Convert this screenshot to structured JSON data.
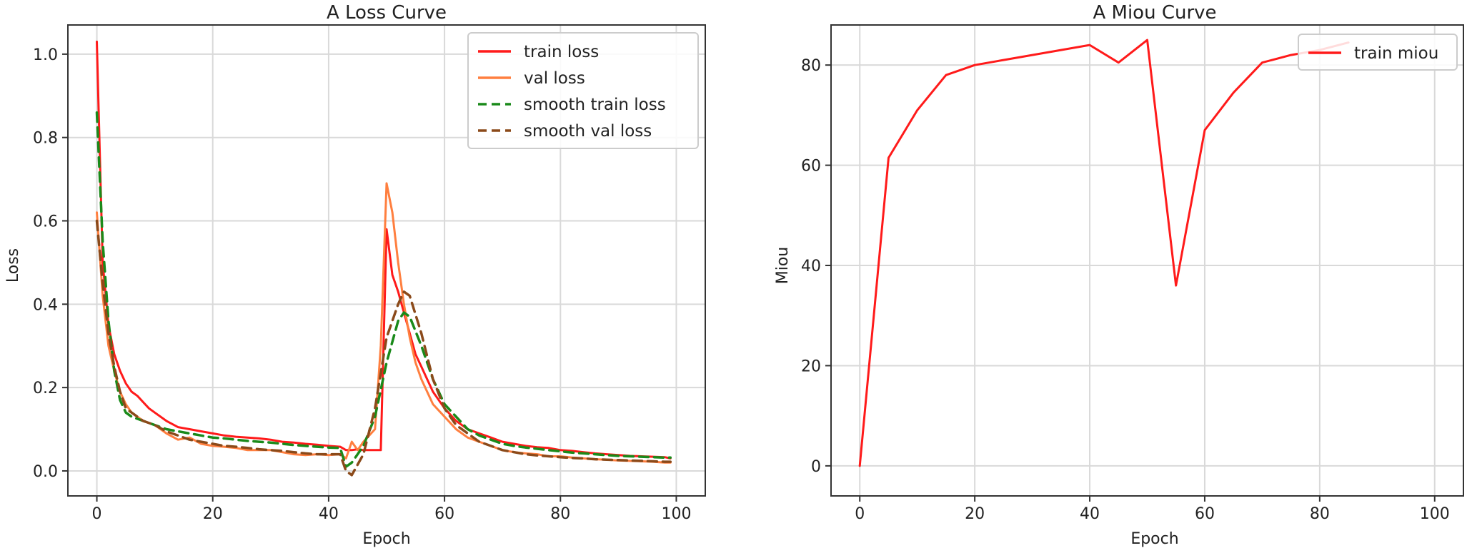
{
  "chart_data": [
    {
      "type": "line",
      "title": "A Loss Curve",
      "xlabel": "Epoch",
      "ylabel": "Loss",
      "xlim": [
        -5,
        105
      ],
      "ylim": [
        -0.06,
        1.07
      ],
      "xticks": [
        0,
        20,
        40,
        60,
        80,
        100
      ],
      "yticks": [
        0.0,
        0.2,
        0.4,
        0.6,
        0.8,
        1.0
      ],
      "grid": true,
      "legend_position": "top-right",
      "series": [
        {
          "name": "train loss",
          "color": "#ff1a1a",
          "dash": "solid",
          "x": [
            0,
            1,
            2,
            3,
            4,
            5,
            6,
            7,
            8,
            9,
            10,
            12,
            14,
            16,
            18,
            20,
            22,
            24,
            26,
            28,
            30,
            32,
            34,
            36,
            38,
            40,
            42,
            43,
            44,
            45,
            46,
            48,
            49,
            50,
            51,
            52,
            53,
            54,
            55,
            56,
            57,
            58,
            60,
            62,
            64,
            66,
            68,
            70,
            72,
            74,
            76,
            78,
            80,
            82,
            84,
            86,
            88,
            90,
            92,
            94,
            96,
            98,
            99
          ],
          "y": [
            1.03,
            0.5,
            0.35,
            0.28,
            0.24,
            0.21,
            0.19,
            0.18,
            0.165,
            0.15,
            0.14,
            0.12,
            0.105,
            0.1,
            0.095,
            0.09,
            0.085,
            0.082,
            0.08,
            0.078,
            0.075,
            0.07,
            0.068,
            0.065,
            0.063,
            0.06,
            0.058,
            0.05,
            0.05,
            0.052,
            0.05,
            0.05,
            0.05,
            0.58,
            0.47,
            0.43,
            0.38,
            0.33,
            0.28,
            0.25,
            0.22,
            0.19,
            0.15,
            0.12,
            0.1,
            0.09,
            0.08,
            0.07,
            0.065,
            0.06,
            0.057,
            0.055,
            0.05,
            0.048,
            0.045,
            0.042,
            0.04,
            0.038,
            0.036,
            0.035,
            0.034,
            0.033,
            0.03
          ]
        },
        {
          "name": "val loss",
          "color": "#ff7f3f",
          "dash": "solid",
          "x": [
            0,
            1,
            2,
            3,
            4,
            5,
            6,
            7,
            8,
            10,
            12,
            14,
            16,
            18,
            20,
            22,
            24,
            26,
            28,
            30,
            32,
            34,
            36,
            38,
            40,
            42,
            43,
            44,
            45,
            46,
            48,
            49,
            50,
            51,
            52,
            53,
            54,
            55,
            56,
            57,
            58,
            60,
            62,
            64,
            66,
            68,
            70,
            72,
            74,
            76,
            78,
            80,
            82,
            84,
            86,
            88,
            90,
            92,
            94,
            96,
            98,
            99
          ],
          "y": [
            0.62,
            0.42,
            0.3,
            0.24,
            0.19,
            0.16,
            0.14,
            0.13,
            0.12,
            0.11,
            0.09,
            0.075,
            0.08,
            0.065,
            0.06,
            0.058,
            0.055,
            0.05,
            0.05,
            0.05,
            0.045,
            0.04,
            0.038,
            0.04,
            0.038,
            0.04,
            0.03,
            0.07,
            0.05,
            0.07,
            0.1,
            0.3,
            0.69,
            0.62,
            0.5,
            0.4,
            0.32,
            0.26,
            0.22,
            0.19,
            0.16,
            0.13,
            0.1,
            0.08,
            0.07,
            0.06,
            0.05,
            0.045,
            0.042,
            0.04,
            0.035,
            0.035,
            0.032,
            0.03,
            0.028,
            0.027,
            0.025,
            0.024,
            0.023,
            0.022,
            0.02,
            0.02
          ]
        },
        {
          "name": "smooth train loss",
          "color": "#1a8a1a",
          "dash": "dashed",
          "x": [
            0,
            1,
            2,
            3,
            4,
            5,
            6,
            8,
            10,
            12,
            14,
            16,
            18,
            20,
            22,
            24,
            26,
            28,
            30,
            32,
            34,
            36,
            38,
            40,
            42,
            43,
            44,
            46,
            48,
            50,
            52,
            53,
            54,
            56,
            58,
            60,
            62,
            64,
            66,
            68,
            70,
            72,
            74,
            76,
            78,
            80,
            82,
            84,
            86,
            88,
            90,
            92,
            94,
            96,
            98,
            99
          ],
          "y": [
            0.86,
            0.55,
            0.36,
            0.24,
            0.17,
            0.14,
            0.13,
            0.12,
            0.11,
            0.1,
            0.095,
            0.09,
            0.085,
            0.08,
            0.078,
            0.075,
            0.072,
            0.07,
            0.068,
            0.065,
            0.062,
            0.06,
            0.058,
            0.056,
            0.055,
            0.01,
            0.02,
            0.06,
            0.13,
            0.26,
            0.36,
            0.38,
            0.37,
            0.3,
            0.22,
            0.16,
            0.13,
            0.1,
            0.085,
            0.075,
            0.065,
            0.06,
            0.056,
            0.053,
            0.05,
            0.047,
            0.044,
            0.042,
            0.04,
            0.038,
            0.036,
            0.035,
            0.034,
            0.033,
            0.032,
            0.032
          ]
        },
        {
          "name": "smooth val loss",
          "color": "#8b4a1a",
          "dash": "dashed",
          "x": [
            0,
            1,
            2,
            3,
            4,
            5,
            6,
            8,
            10,
            12,
            14,
            16,
            18,
            20,
            22,
            24,
            26,
            28,
            30,
            32,
            34,
            36,
            38,
            40,
            42,
            43,
            44,
            46,
            48,
            50,
            51,
            52,
            53,
            54,
            56,
            58,
            60,
            62,
            64,
            66,
            68,
            70,
            72,
            74,
            76,
            78,
            80,
            82,
            84,
            86,
            88,
            90,
            92,
            94,
            96,
            98,
            99
          ],
          "y": [
            0.6,
            0.45,
            0.33,
            0.25,
            0.19,
            0.15,
            0.14,
            0.12,
            0.11,
            0.095,
            0.085,
            0.075,
            0.07,
            0.065,
            0.06,
            0.058,
            0.055,
            0.052,
            0.05,
            0.048,
            0.045,
            0.042,
            0.04,
            0.04,
            0.04,
            0.0,
            -0.01,
            0.04,
            0.15,
            0.32,
            0.36,
            0.4,
            0.43,
            0.42,
            0.33,
            0.22,
            0.15,
            0.11,
            0.09,
            0.07,
            0.06,
            0.05,
            0.045,
            0.04,
            0.037,
            0.035,
            0.033,
            0.031,
            0.03,
            0.028,
            0.027,
            0.026,
            0.025,
            0.024,
            0.023,
            0.022,
            0.022
          ]
        }
      ]
    },
    {
      "type": "line",
      "title": "A Miou Curve",
      "xlabel": "Epoch",
      "ylabel": "Miou",
      "xlim": [
        -5,
        105
      ],
      "ylim": [
        -6,
        88
      ],
      "xticks": [
        0,
        20,
        40,
        60,
        80,
        100
      ],
      "yticks": [
        0,
        20,
        40,
        60,
        80
      ],
      "grid": true,
      "legend_position": "top-right",
      "series": [
        {
          "name": "train miou",
          "color": "#ff1a1a",
          "dash": "solid",
          "x": [
            0,
            5,
            10,
            15,
            20,
            25,
            30,
            35,
            40,
            45,
            50,
            55,
            60,
            65,
            70,
            75,
            80,
            85
          ],
          "y": [
            0,
            61.5,
            71,
            78,
            80,
            81,
            82,
            83,
            84,
            80.5,
            85,
            36,
            67,
            74.5,
            80.5,
            82,
            83,
            84.5
          ]
        }
      ]
    }
  ]
}
